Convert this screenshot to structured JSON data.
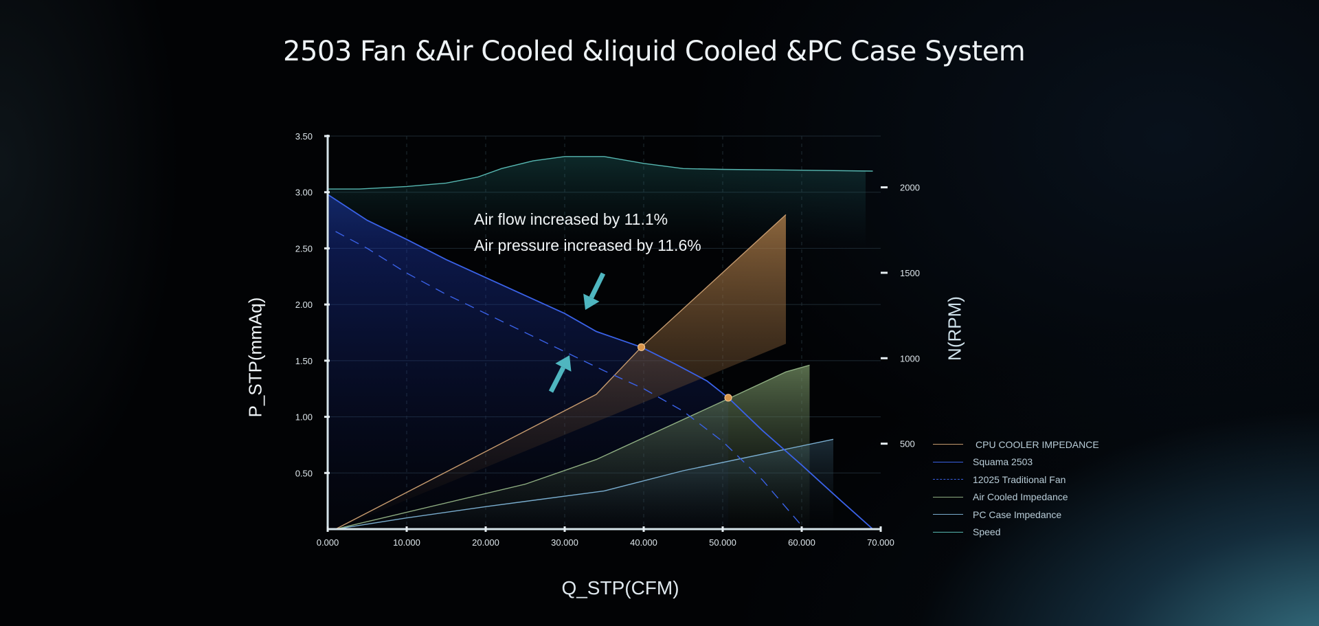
{
  "title": "2503 Fan &Air Cooled &liquid Cooled &PC Case System",
  "annotations": {
    "line1": "Air flow increased by 11.1%",
    "line2": "Air pressure increased by 11.6%"
  },
  "colors": {
    "background": "#020305",
    "cpu_cooler": "#c59a6e",
    "squama": "#3a62e8",
    "traditional": "#3a62e8",
    "air_cooled": "#8fae82",
    "pc_case": "#7aaed0",
    "speed": "#57b8b2",
    "arrow": "#4fb6c0",
    "marker": "#d9954c"
  },
  "chart_data": {
    "type": "line",
    "title": "2503 Fan &Air Cooled &liquid Cooled &PC Case System",
    "xlabel": "Q_STP(CFM)",
    "ylabel": "P_STP(mmAq)",
    "y2label": "N(RPM)",
    "xlim": [
      0,
      70
    ],
    "ylim": [
      0,
      3.5
    ],
    "y2lim": [
      0,
      2300
    ],
    "x_ticks": [
      "0.000",
      "10.000",
      "20.000",
      "30.000",
      "40.000",
      "50.000",
      "60.000",
      "70.000"
    ],
    "y_ticks": [
      "3.50",
      "3.00",
      "2.50",
      "2.00",
      "1.50",
      "1.00",
      "0.50"
    ],
    "y2_ticks": [
      "2000",
      "1500",
      "1000",
      "500"
    ],
    "grid": true,
    "legend_position": "bottom-right",
    "series": [
      {
        "name": "CPU COOLER IMPEDANCE",
        "axis": "left",
        "x": [
          1,
          34,
          39.7,
          58,
          58
        ],
        "y": [
          0,
          1.2,
          1.62,
          2.8,
          1.65
        ]
      },
      {
        "name": "Squama 2503",
        "axis": "left",
        "x": [
          0,
          5,
          10,
          15,
          20,
          25,
          30,
          34,
          39.7,
          44,
          48,
          50.7,
          55,
          60,
          65,
          69
        ],
        "y": [
          2.98,
          2.75,
          2.58,
          2.4,
          2.24,
          2.08,
          1.92,
          1.76,
          1.62,
          1.47,
          1.32,
          1.17,
          0.88,
          0.57,
          0.25,
          0
        ]
      },
      {
        "name": "12025 Traditional Fan",
        "axis": "left",
        "x": [
          1,
          5,
          10,
          15,
          20,
          25,
          30,
          35,
          40,
          45,
          50,
          55,
          60
        ],
        "y": [
          2.65,
          2.5,
          2.28,
          2.09,
          1.92,
          1.75,
          1.58,
          1.41,
          1.25,
          1.05,
          0.78,
          0.44,
          0.03
        ]
      },
      {
        "name": "Air Cooled Impedance",
        "axis": "left",
        "x": [
          1,
          25,
          34,
          51,
          58,
          61,
          61
        ],
        "y": [
          0,
          0.4,
          0.62,
          1.17,
          1.4,
          1.46,
          0.8
        ]
      },
      {
        "name": "PC Case Impedance",
        "axis": "left",
        "x": [
          1,
          10,
          20,
          35,
          45,
          64
        ],
        "y": [
          0,
          0.1,
          0.2,
          0.34,
          0.52,
          0.8
        ]
      },
      {
        "name": "Speed",
        "axis": "right",
        "x": [
          0,
          4,
          10,
          15,
          19,
          22,
          26,
          30,
          35,
          40,
          45,
          50,
          60,
          69
        ],
        "y": [
          1990,
          1990,
          2005,
          2025,
          2060,
          2110,
          2155,
          2180,
          2180,
          2140,
          2110,
          2105,
          2100,
          2095
        ]
      }
    ],
    "markers": [
      {
        "x": 39.7,
        "y": 1.62
      },
      {
        "x": 50.7,
        "y": 1.17
      }
    ]
  }
}
